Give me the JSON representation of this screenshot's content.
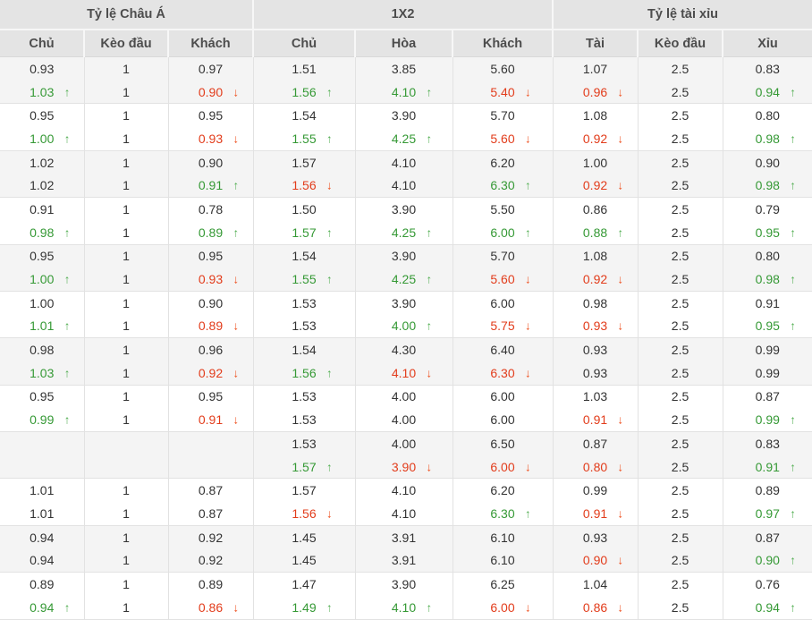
{
  "colors": {
    "up": "#359935",
    "up_arrow": "#56b056",
    "down": "#e23c1b",
    "down_arrow": "#ee501f",
    "header_bg": "#e4e4e4",
    "shade_row_bg": "#f4f4f4"
  },
  "icons": {
    "up": "↑",
    "down": "↓"
  },
  "table": {
    "groups": [
      {
        "label": "Tỷ lệ Châu Á",
        "cols": [
          "Chủ",
          "Kèo đầu",
          "Khách"
        ]
      },
      {
        "label": "1X2",
        "cols": [
          "Chủ",
          "Hòa",
          "Khách"
        ]
      },
      {
        "label": "Tỷ lệ tài xỉu",
        "cols": [
          "Tài",
          "Kèo đầu",
          "Xỉu"
        ]
      }
    ],
    "rows": [
      {
        "cells": [
          {
            "v": "0.93",
            "t": ""
          },
          {
            "v": "1",
            "t": ""
          },
          {
            "v": "0.97",
            "t": ""
          },
          {
            "v": "1.51",
            "t": ""
          },
          {
            "v": "3.85",
            "t": ""
          },
          {
            "v": "5.60",
            "t": ""
          },
          {
            "v": "1.07",
            "t": ""
          },
          {
            "v": "2.5",
            "t": ""
          },
          {
            "v": "0.83",
            "t": ""
          }
        ]
      },
      {
        "cells": [
          {
            "v": "1.03",
            "t": "u"
          },
          {
            "v": "1",
            "t": ""
          },
          {
            "v": "0.90",
            "t": "d"
          },
          {
            "v": "1.56",
            "t": "u"
          },
          {
            "v": "4.10",
            "t": "u"
          },
          {
            "v": "5.40",
            "t": "d"
          },
          {
            "v": "0.96",
            "t": "d"
          },
          {
            "v": "2.5",
            "t": ""
          },
          {
            "v": "0.94",
            "t": "u"
          }
        ]
      },
      {
        "cells": [
          {
            "v": "0.95",
            "t": ""
          },
          {
            "v": "1",
            "t": ""
          },
          {
            "v": "0.95",
            "t": ""
          },
          {
            "v": "1.54",
            "t": ""
          },
          {
            "v": "3.90",
            "t": ""
          },
          {
            "v": "5.70",
            "t": ""
          },
          {
            "v": "1.08",
            "t": ""
          },
          {
            "v": "2.5",
            "t": ""
          },
          {
            "v": "0.80",
            "t": ""
          }
        ]
      },
      {
        "cells": [
          {
            "v": "1.00",
            "t": "u"
          },
          {
            "v": "1",
            "t": ""
          },
          {
            "v": "0.93",
            "t": "d"
          },
          {
            "v": "1.55",
            "t": "u"
          },
          {
            "v": "4.25",
            "t": "u"
          },
          {
            "v": "5.60",
            "t": "d"
          },
          {
            "v": "0.92",
            "t": "d"
          },
          {
            "v": "2.5",
            "t": ""
          },
          {
            "v": "0.98",
            "t": "u"
          }
        ]
      },
      {
        "cells": [
          {
            "v": "1.02",
            "t": ""
          },
          {
            "v": "1",
            "t": ""
          },
          {
            "v": "0.90",
            "t": ""
          },
          {
            "v": "1.57",
            "t": ""
          },
          {
            "v": "4.10",
            "t": ""
          },
          {
            "v": "6.20",
            "t": ""
          },
          {
            "v": "1.00",
            "t": ""
          },
          {
            "v": "2.5",
            "t": ""
          },
          {
            "v": "0.90",
            "t": ""
          }
        ]
      },
      {
        "cells": [
          {
            "v": "1.02",
            "t": ""
          },
          {
            "v": "1",
            "t": ""
          },
          {
            "v": "0.91",
            "t": "u"
          },
          {
            "v": "1.56",
            "t": "d"
          },
          {
            "v": "4.10",
            "t": ""
          },
          {
            "v": "6.30",
            "t": "u"
          },
          {
            "v": "0.92",
            "t": "d"
          },
          {
            "v": "2.5",
            "t": ""
          },
          {
            "v": "0.98",
            "t": "u"
          }
        ]
      },
      {
        "cells": [
          {
            "v": "0.91",
            "t": ""
          },
          {
            "v": "1",
            "t": ""
          },
          {
            "v": "0.78",
            "t": ""
          },
          {
            "v": "1.50",
            "t": ""
          },
          {
            "v": "3.90",
            "t": ""
          },
          {
            "v": "5.50",
            "t": ""
          },
          {
            "v": "0.86",
            "t": ""
          },
          {
            "v": "2.5",
            "t": ""
          },
          {
            "v": "0.79",
            "t": ""
          }
        ]
      },
      {
        "cells": [
          {
            "v": "0.98",
            "t": "u"
          },
          {
            "v": "1",
            "t": ""
          },
          {
            "v": "0.89",
            "t": "u"
          },
          {
            "v": "1.57",
            "t": "u"
          },
          {
            "v": "4.25",
            "t": "u"
          },
          {
            "v": "6.00",
            "t": "u"
          },
          {
            "v": "0.88",
            "t": "u"
          },
          {
            "v": "2.5",
            "t": ""
          },
          {
            "v": "0.95",
            "t": "u"
          }
        ]
      },
      {
        "cells": [
          {
            "v": "0.95",
            "t": ""
          },
          {
            "v": "1",
            "t": ""
          },
          {
            "v": "0.95",
            "t": ""
          },
          {
            "v": "1.54",
            "t": ""
          },
          {
            "v": "3.90",
            "t": ""
          },
          {
            "v": "5.70",
            "t": ""
          },
          {
            "v": "1.08",
            "t": ""
          },
          {
            "v": "2.5",
            "t": ""
          },
          {
            "v": "0.80",
            "t": ""
          }
        ]
      },
      {
        "cells": [
          {
            "v": "1.00",
            "t": "u"
          },
          {
            "v": "1",
            "t": ""
          },
          {
            "v": "0.93",
            "t": "d"
          },
          {
            "v": "1.55",
            "t": "u"
          },
          {
            "v": "4.25",
            "t": "u"
          },
          {
            "v": "5.60",
            "t": "d"
          },
          {
            "v": "0.92",
            "t": "d"
          },
          {
            "v": "2.5",
            "t": ""
          },
          {
            "v": "0.98",
            "t": "u"
          }
        ]
      },
      {
        "cells": [
          {
            "v": "1.00",
            "t": ""
          },
          {
            "v": "1",
            "t": ""
          },
          {
            "v": "0.90",
            "t": ""
          },
          {
            "v": "1.53",
            "t": ""
          },
          {
            "v": "3.90",
            "t": ""
          },
          {
            "v": "6.00",
            "t": ""
          },
          {
            "v": "0.98",
            "t": ""
          },
          {
            "v": "2.5",
            "t": ""
          },
          {
            "v": "0.91",
            "t": ""
          }
        ]
      },
      {
        "cells": [
          {
            "v": "1.01",
            "t": "u"
          },
          {
            "v": "1",
            "t": ""
          },
          {
            "v": "0.89",
            "t": "d"
          },
          {
            "v": "1.53",
            "t": ""
          },
          {
            "v": "4.00",
            "t": "u"
          },
          {
            "v": "5.75",
            "t": "d"
          },
          {
            "v": "0.93",
            "t": "d"
          },
          {
            "v": "2.5",
            "t": ""
          },
          {
            "v": "0.95",
            "t": "u"
          }
        ]
      },
      {
        "cells": [
          {
            "v": "0.98",
            "t": ""
          },
          {
            "v": "1",
            "t": ""
          },
          {
            "v": "0.96",
            "t": ""
          },
          {
            "v": "1.54",
            "t": ""
          },
          {
            "v": "4.30",
            "t": ""
          },
          {
            "v": "6.40",
            "t": ""
          },
          {
            "v": "0.93",
            "t": ""
          },
          {
            "v": "2.5",
            "t": ""
          },
          {
            "v": "0.99",
            "t": ""
          }
        ]
      },
      {
        "cells": [
          {
            "v": "1.03",
            "t": "u"
          },
          {
            "v": "1",
            "t": ""
          },
          {
            "v": "0.92",
            "t": "d"
          },
          {
            "v": "1.56",
            "t": "u"
          },
          {
            "v": "4.10",
            "t": "d"
          },
          {
            "v": "6.30",
            "t": "d"
          },
          {
            "v": "0.93",
            "t": ""
          },
          {
            "v": "2.5",
            "t": ""
          },
          {
            "v": "0.99",
            "t": ""
          }
        ]
      },
      {
        "cells": [
          {
            "v": "0.95",
            "t": ""
          },
          {
            "v": "1",
            "t": ""
          },
          {
            "v": "0.95",
            "t": ""
          },
          {
            "v": "1.53",
            "t": ""
          },
          {
            "v": "4.00",
            "t": ""
          },
          {
            "v": "6.00",
            "t": ""
          },
          {
            "v": "1.03",
            "t": ""
          },
          {
            "v": "2.5",
            "t": ""
          },
          {
            "v": "0.87",
            "t": ""
          }
        ]
      },
      {
        "cells": [
          {
            "v": "0.99",
            "t": "u"
          },
          {
            "v": "1",
            "t": ""
          },
          {
            "v": "0.91",
            "t": "d"
          },
          {
            "v": "1.53",
            "t": ""
          },
          {
            "v": "4.00",
            "t": ""
          },
          {
            "v": "6.00",
            "t": ""
          },
          {
            "v": "0.91",
            "t": "d"
          },
          {
            "v": "2.5",
            "t": ""
          },
          {
            "v": "0.99",
            "t": "u"
          }
        ]
      },
      {
        "cells": [
          {
            "v": "",
            "t": ""
          },
          {
            "v": "",
            "t": ""
          },
          {
            "v": "",
            "t": ""
          },
          {
            "v": "1.53",
            "t": ""
          },
          {
            "v": "4.00",
            "t": ""
          },
          {
            "v": "6.50",
            "t": ""
          },
          {
            "v": "0.87",
            "t": ""
          },
          {
            "v": "2.5",
            "t": ""
          },
          {
            "v": "0.83",
            "t": ""
          }
        ]
      },
      {
        "cells": [
          {
            "v": "",
            "t": ""
          },
          {
            "v": "",
            "t": ""
          },
          {
            "v": "",
            "t": ""
          },
          {
            "v": "1.57",
            "t": "u"
          },
          {
            "v": "3.90",
            "t": "d"
          },
          {
            "v": "6.00",
            "t": "d"
          },
          {
            "v": "0.80",
            "t": "d"
          },
          {
            "v": "2.5",
            "t": ""
          },
          {
            "v": "0.91",
            "t": "u"
          }
        ]
      },
      {
        "cells": [
          {
            "v": "1.01",
            "t": ""
          },
          {
            "v": "1",
            "t": ""
          },
          {
            "v": "0.87",
            "t": ""
          },
          {
            "v": "1.57",
            "t": ""
          },
          {
            "v": "4.10",
            "t": ""
          },
          {
            "v": "6.20",
            "t": ""
          },
          {
            "v": "0.99",
            "t": ""
          },
          {
            "v": "2.5",
            "t": ""
          },
          {
            "v": "0.89",
            "t": ""
          }
        ]
      },
      {
        "cells": [
          {
            "v": "1.01",
            "t": ""
          },
          {
            "v": "1",
            "t": ""
          },
          {
            "v": "0.87",
            "t": ""
          },
          {
            "v": "1.56",
            "t": "d"
          },
          {
            "v": "4.10",
            "t": ""
          },
          {
            "v": "6.30",
            "t": "u"
          },
          {
            "v": "0.91",
            "t": "d"
          },
          {
            "v": "2.5",
            "t": ""
          },
          {
            "v": "0.97",
            "t": "u"
          }
        ]
      },
      {
        "cells": [
          {
            "v": "0.94",
            "t": ""
          },
          {
            "v": "1",
            "t": ""
          },
          {
            "v": "0.92",
            "t": ""
          },
          {
            "v": "1.45",
            "t": ""
          },
          {
            "v": "3.91",
            "t": ""
          },
          {
            "v": "6.10",
            "t": ""
          },
          {
            "v": "0.93",
            "t": ""
          },
          {
            "v": "2.5",
            "t": ""
          },
          {
            "v": "0.87",
            "t": ""
          }
        ]
      },
      {
        "cells": [
          {
            "v": "0.94",
            "t": ""
          },
          {
            "v": "1",
            "t": ""
          },
          {
            "v": "0.92",
            "t": ""
          },
          {
            "v": "1.45",
            "t": ""
          },
          {
            "v": "3.91",
            "t": ""
          },
          {
            "v": "6.10",
            "t": ""
          },
          {
            "v": "0.90",
            "t": "d"
          },
          {
            "v": "2.5",
            "t": ""
          },
          {
            "v": "0.90",
            "t": "u"
          }
        ]
      },
      {
        "cells": [
          {
            "v": "0.89",
            "t": ""
          },
          {
            "v": "1",
            "t": ""
          },
          {
            "v": "0.89",
            "t": ""
          },
          {
            "v": "1.47",
            "t": ""
          },
          {
            "v": "3.90",
            "t": ""
          },
          {
            "v": "6.25",
            "t": ""
          },
          {
            "v": "1.04",
            "t": ""
          },
          {
            "v": "2.5",
            "t": ""
          },
          {
            "v": "0.76",
            "t": ""
          }
        ]
      },
      {
        "cells": [
          {
            "v": "0.94",
            "t": "u"
          },
          {
            "v": "1",
            "t": ""
          },
          {
            "v": "0.86",
            "t": "d"
          },
          {
            "v": "1.49",
            "t": "u"
          },
          {
            "v": "4.10",
            "t": "u"
          },
          {
            "v": "6.00",
            "t": "d"
          },
          {
            "v": "0.86",
            "t": "d"
          },
          {
            "v": "2.5",
            "t": ""
          },
          {
            "v": "0.94",
            "t": "u"
          }
        ]
      }
    ]
  }
}
